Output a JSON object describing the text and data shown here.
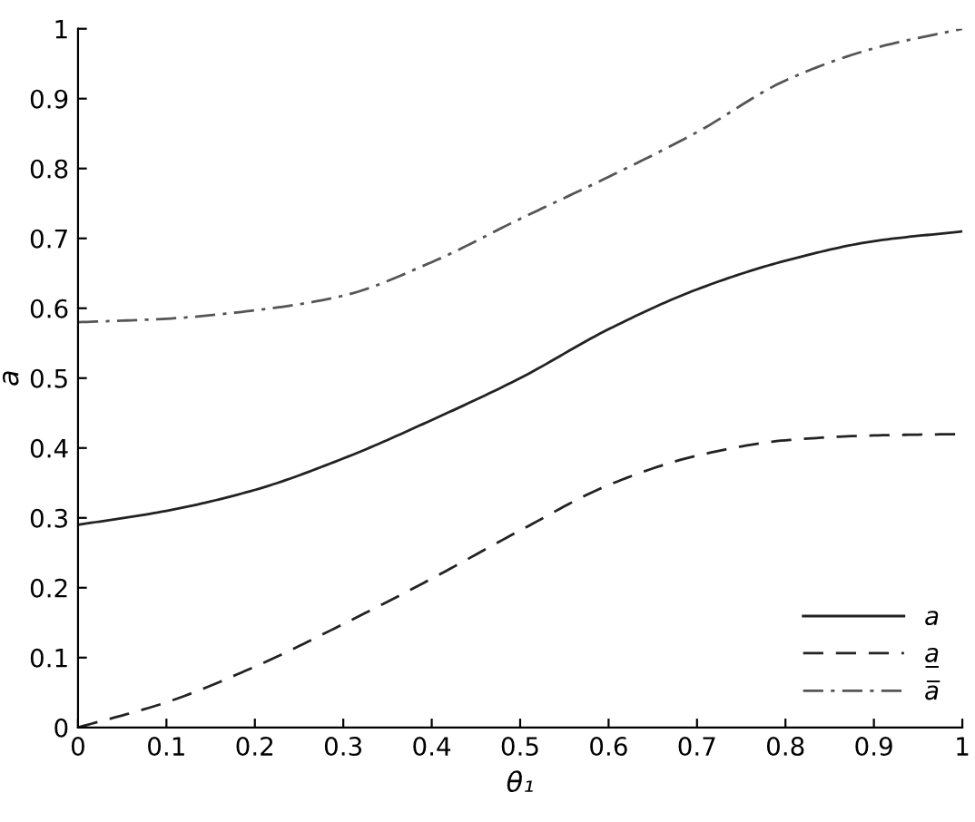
{
  "chart_data": {
    "type": "line",
    "xlabel": "θ₁",
    "ylabel": "a",
    "x": [
      0,
      0.1,
      0.2,
      0.3,
      0.4,
      0.5,
      0.6,
      0.7,
      0.8,
      0.9,
      1
    ],
    "series": [
      {
        "name": "a",
        "color": "#222222",
        "line_style": "solid",
        "values": [
          0.29,
          0.31,
          0.34,
          0.385,
          0.44,
          0.5,
          0.57,
          0.627,
          0.668,
          0.696,
          0.71
        ]
      },
      {
        "name": "a̲",
        "color": "#222222",
        "line_style": "dashed",
        "values": [
          0,
          0.036,
          0.087,
          0.148,
          0.213,
          0.282,
          0.347,
          0.389,
          0.411,
          0.418,
          0.42
        ]
      },
      {
        "name": "a̅",
        "color": "#555555",
        "line_style": "dashdot",
        "values": [
          0.58,
          0.585,
          0.597,
          0.618,
          0.666,
          0.728,
          0.788,
          0.852,
          0.926,
          0.972,
          1.0
        ]
      }
    ],
    "xlim": [
      0,
      1
    ],
    "xticks": [
      0,
      0.1,
      0.2,
      0.3,
      0.4,
      0.5,
      0.6,
      0.7,
      0.8,
      0.9,
      1
    ],
    "ylim": [
      0,
      1
    ],
    "yticks": [
      0,
      0.1,
      0.2,
      0.3,
      0.4,
      0.5,
      0.6,
      0.7,
      0.8,
      0.9,
      1
    ],
    "grid": false,
    "legend": "bottom right",
    "marker": "none"
  }
}
